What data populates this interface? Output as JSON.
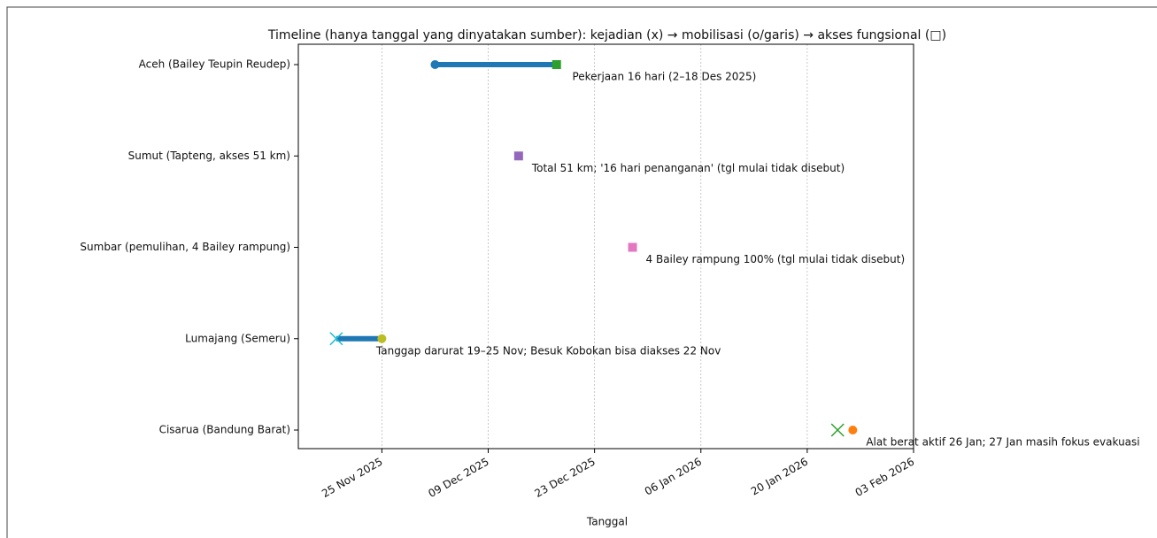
{
  "chart_data": {
    "type": "timeline",
    "title": "Timeline (hanya tanggal yang dinyatakan sumber): kejadian (x) → mobilisasi (o/garis) → akses fungsional (□)",
    "x_label": "Tanggal",
    "xlim": [
      "2025-11-14",
      "2026-02-03"
    ],
    "xticks": [
      {
        "value": "2025-11-25",
        "label": "25 Nov 2025"
      },
      {
        "value": "2025-12-09",
        "label": "09 Dec 2025"
      },
      {
        "value": "2025-12-23",
        "label": "23 Dec 2025"
      },
      {
        "value": "2026-01-06",
        "label": "06 Jan 2026"
      },
      {
        "value": "2026-01-20",
        "label": "20 Jan 2026"
      },
      {
        "value": "2026-02-03",
        "label": "03 Feb 2026"
      }
    ],
    "grid": true,
    "rows": [
      {
        "label": "Aceh (Bailey Teupin Reudep)",
        "note": "Pekerjaan 16 hari (2–18 Des 2025)",
        "line": [
          "2025-12-02",
          "2025-12-18"
        ],
        "line_color": "#1f77b4",
        "marks": [
          {
            "kind": "circle",
            "date": "2025-12-02",
            "color": "#1f77b4"
          },
          {
            "kind": "square",
            "date": "2025-12-18",
            "color": "#2ca02c"
          }
        ]
      },
      {
        "label": "Sumut (Tapteng, akses 51 km)",
        "note": "Total 51 km; '16 hari penanganan' (tgl mulai tidak disebut)",
        "line": null,
        "line_color": null,
        "marks": [
          {
            "kind": "square",
            "date": "2025-12-13",
            "color": "#9467bd"
          }
        ]
      },
      {
        "label": "Sumbar (pemulihan, 4 Bailey rampung)",
        "note": "4 Bailey rampung 100% (tgl mulai tidak disebut)",
        "line": null,
        "line_color": null,
        "marks": [
          {
            "kind": "square",
            "date": "2025-12-28",
            "color": "#e377c2"
          }
        ]
      },
      {
        "label": "Lumajang (Semeru)",
        "note": "Tanggap darurat 19–25 Nov; Besuk Kobokan bisa diakses 22 Nov",
        "line": [
          "2025-11-19",
          "2025-11-25"
        ],
        "line_color": "#1f77b4",
        "marks": [
          {
            "kind": "x",
            "date": "2025-11-19",
            "color": "#17becf"
          },
          {
            "kind": "circle",
            "date": "2025-11-25",
            "color": "#bcbd22"
          }
        ]
      },
      {
        "label": "Cisarua (Bandung Barat)",
        "note": "Alat berat aktif 26 Jan; 27 Jan masih fokus evakuasi",
        "line": null,
        "line_color": null,
        "marks": [
          {
            "kind": "x",
            "date": "2026-01-24",
            "color": "#2ca02c"
          },
          {
            "kind": "circle",
            "date": "2026-01-26",
            "color": "#ff7f0e"
          }
        ]
      }
    ]
  }
}
